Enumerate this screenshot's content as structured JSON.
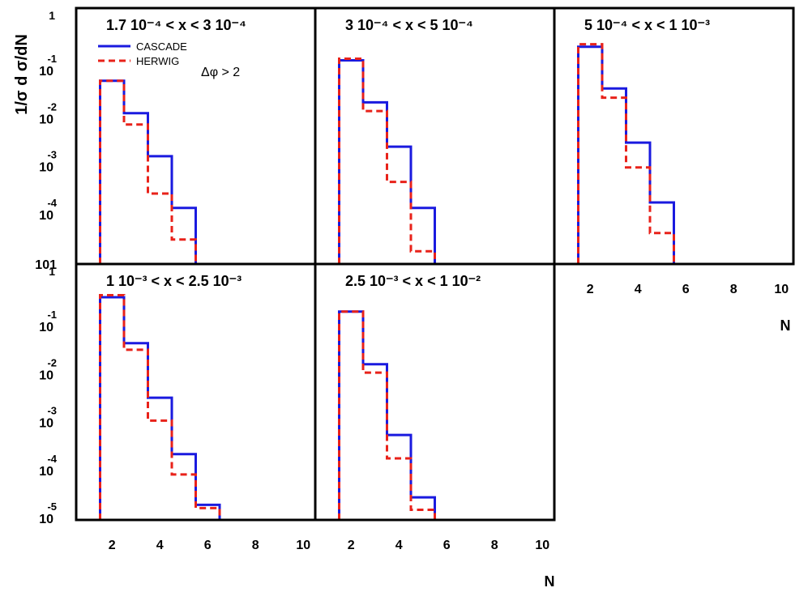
{
  "figure": {
    "ylabel": "1/σ d σ/dN",
    "xlabel": "N",
    "cut_label": "Δφ > 2"
  },
  "legend": [
    {
      "name": "CASCADE",
      "color": "#1a1adf",
      "style": "solid"
    },
    {
      "name": "HERWIG",
      "color": "#e8221a",
      "style": "dashed"
    }
  ],
  "axes": {
    "x_ticks": [
      "2",
      "4",
      "6",
      "8",
      "10"
    ],
    "y_ticks": [
      {
        "base": "1",
        "exp": ""
      },
      {
        "base": "10",
        "exp": "-1"
      },
      {
        "base": "10",
        "exp": "-2"
      },
      {
        "base": "10",
        "exp": "-3"
      },
      {
        "base": "10",
        "exp": "-4"
      },
      {
        "base": "10",
        "exp": "-5"
      }
    ],
    "y_overlap_label": "101"
  },
  "chart_data": [
    {
      "type": "histogram-step",
      "title": "1.7 10⁻⁴ < x < 3 10⁻⁴",
      "xlim": [
        0.5,
        10.5
      ],
      "ylim": [
        1e-05,
        1
      ],
      "yscale": "log",
      "bin_edges": [
        1.5,
        2.5,
        3.5,
        4.5,
        5.5
      ],
      "series": [
        {
          "name": "CASCADE",
          "values": [
            0.045,
            0.0095,
            0.0012,
            0.0001
          ]
        },
        {
          "name": "HERWIG",
          "values": [
            0.045,
            0.0055,
            0.0002,
            2.2e-05
          ]
        }
      ]
    },
    {
      "type": "histogram-step",
      "title": "3 10⁻⁴ < x < 5 10⁻⁴",
      "xlim": [
        0.5,
        10.5
      ],
      "ylim": [
        1e-05,
        1
      ],
      "yscale": "log",
      "bin_edges": [
        1.5,
        2.5,
        3.5,
        4.5,
        5.5
      ],
      "series": [
        {
          "name": "CASCADE",
          "values": [
            0.12,
            0.016,
            0.0019,
            0.0001
          ]
        },
        {
          "name": "HERWIG",
          "values": [
            0.13,
            0.0105,
            0.00035,
            1.25e-05
          ]
        }
      ]
    },
    {
      "type": "histogram-step",
      "title": "5 10⁻⁴ < x < 1 10⁻³",
      "xlim": [
        0.5,
        10.5
      ],
      "ylim": [
        1e-05,
        1
      ],
      "yscale": "log",
      "bin_edges": [
        1.5,
        2.5,
        3.5,
        4.5,
        5.5
      ],
      "series": [
        {
          "name": "CASCADE",
          "values": [
            0.23,
            0.031,
            0.0023,
            0.00013
          ]
        },
        {
          "name": "HERWIG",
          "values": [
            0.26,
            0.02,
            0.0007,
            3e-05
          ]
        }
      ]
    },
    {
      "type": "histogram-step",
      "title": "1 10⁻³ < x < 2.5 10⁻³",
      "xlim": [
        0.5,
        10.5
      ],
      "ylim": [
        1e-05,
        1
      ],
      "yscale": "log",
      "bin_edges": [
        1.5,
        2.5,
        3.5,
        4.5,
        5.5,
        6.5
      ],
      "series": [
        {
          "name": "CASCADE",
          "values": [
            0.3,
            0.033,
            0.0024,
            0.00016,
            1.4e-05
          ]
        },
        {
          "name": "HERWIG",
          "values": [
            0.33,
            0.024,
            0.0008,
            6e-05,
            1.2e-05
          ]
        }
      ]
    },
    {
      "type": "histogram-step",
      "title": "2.5 10⁻³ < x < 1 10⁻²",
      "xlim": [
        0.5,
        10.5
      ],
      "ylim": [
        1e-05,
        1
      ],
      "yscale": "log",
      "bin_edges": [
        1.5,
        2.5,
        3.5,
        4.5,
        5.5
      ],
      "series": [
        {
          "name": "CASCADE",
          "values": [
            0.15,
            0.012,
            0.0004,
            2e-05
          ]
        },
        {
          "name": "HERWIG",
          "values": [
            0.15,
            0.008,
            0.00013,
            1.1e-05
          ]
        }
      ]
    }
  ]
}
